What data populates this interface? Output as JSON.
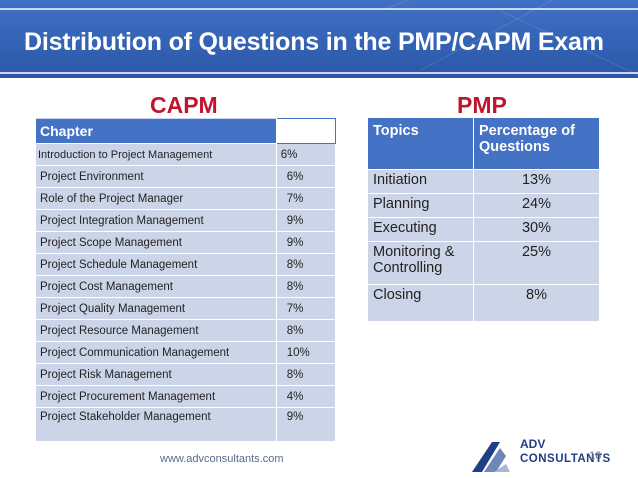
{
  "slide": {
    "title": "Distribution of Questions in the PMP/CAPM Exam",
    "footer_url": "www.advconsultants.com",
    "page_number": "16",
    "logo": {
      "line1": "ADV",
      "line2": "CONSULTANTS"
    }
  },
  "capm": {
    "heading": "CAPM",
    "header": {
      "chapter": "Chapter",
      "percent": ""
    },
    "rows": [
      {
        "chapter": "Introduction to Project Management",
        "percent": "6%"
      },
      {
        "chapter": "Project Environment",
        "percent": "6%"
      },
      {
        "chapter": "Role of the Project Manager",
        "percent": "7%"
      },
      {
        "chapter": "Project Integration Management",
        "percent": "9%"
      },
      {
        "chapter": "Project Scope Management",
        "percent": "9%"
      },
      {
        "chapter": "Project Schedule Management",
        "percent": "8%"
      },
      {
        "chapter": "Project Cost Management",
        "percent": "8%"
      },
      {
        "chapter": "Project Quality Management",
        "percent": "7%"
      },
      {
        "chapter": "Project Resource Management",
        "percent": "8%"
      },
      {
        "chapter": "Project Communication Management",
        "percent": "10%"
      },
      {
        "chapter": "Project Risk Management",
        "percent": "8%"
      },
      {
        "chapter": "Project Procurement Management",
        "percent": "4%"
      },
      {
        "chapter": "Project Stakeholder Management",
        "percent": "9%"
      }
    ]
  },
  "pmp": {
    "heading": "PMP",
    "header": {
      "topics": "Topics",
      "percent": "Percentage of Questions"
    },
    "rows": [
      {
        "topic": "Initiation",
        "percent": "13%"
      },
      {
        "topic": "Planning",
        "percent": "24%"
      },
      {
        "topic": "Executing",
        "percent": "30%"
      },
      {
        "topic": "Monitoring & Controlling",
        "percent": "25%"
      },
      {
        "topic": "Closing",
        "percent": "8%"
      }
    ]
  },
  "colors": {
    "header_blue": "#3361b3",
    "table_header": "#4472c4",
    "table_body": "#ccd5e8",
    "heading_red": "#c0152e"
  }
}
